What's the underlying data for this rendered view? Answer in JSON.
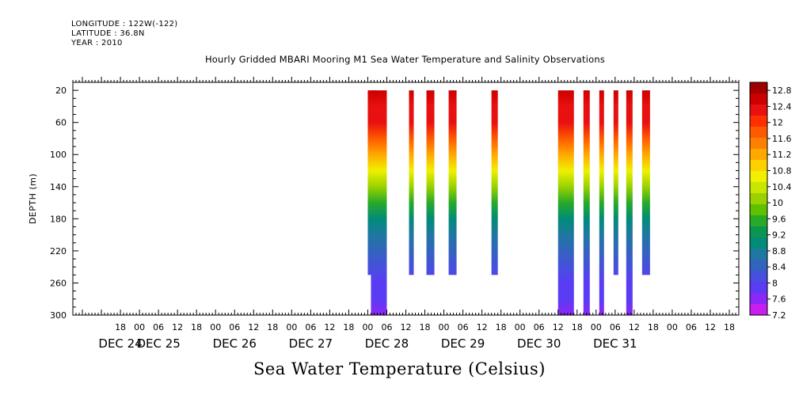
{
  "header": {
    "lines": [
      "LONGITUDE : 122W(-122)",
      "LATITUDE : 36.8N",
      "YEAR : 2010"
    ]
  },
  "chart_data": {
    "type": "heatmap",
    "title": "Hourly Gridded MBARI Mooring M1 Sea Water Temperature and Salinity Observations",
    "xlabel": "Sea Water Temperature (Celsius)",
    "ylabel": "DEPTH (m)",
    "x_unit": "hours since Dec 24 00:00, 2010",
    "xlim": [
      -21,
      189
    ],
    "ylim": [
      300,
      10
    ],
    "y_reversed": true,
    "y_ticks": [
      20,
      60,
      100,
      140,
      180,
      220,
      260,
      300
    ],
    "x_hour_ticks": [
      {
        "h": -6,
        "label": "18"
      },
      {
        "h": 0,
        "label": "00"
      },
      {
        "h": 6,
        "label": "06"
      },
      {
        "h": 12,
        "label": "12"
      },
      {
        "h": 18,
        "label": "18"
      },
      {
        "h": 24,
        "label": "00"
      },
      {
        "h": 30,
        "label": "06"
      },
      {
        "h": 36,
        "label": "12"
      },
      {
        "h": 42,
        "label": "18"
      },
      {
        "h": 48,
        "label": "00"
      },
      {
        "h": 54,
        "label": "06"
      },
      {
        "h": 60,
        "label": "12"
      },
      {
        "h": 66,
        "label": "18"
      },
      {
        "h": 72,
        "label": "00"
      },
      {
        "h": 78,
        "label": "06"
      },
      {
        "h": 84,
        "label": "12"
      },
      {
        "h": 90,
        "label": "18"
      },
      {
        "h": 96,
        "label": "00"
      },
      {
        "h": 102,
        "label": "06"
      },
      {
        "h": 108,
        "label": "12"
      },
      {
        "h": 114,
        "label": "18"
      },
      {
        "h": 120,
        "label": "00"
      },
      {
        "h": 126,
        "label": "06"
      },
      {
        "h": 132,
        "label": "12"
      },
      {
        "h": 138,
        "label": "18"
      },
      {
        "h": 144,
        "label": "00"
      },
      {
        "h": 150,
        "label": "06"
      },
      {
        "h": 156,
        "label": "12"
      },
      {
        "h": 162,
        "label": "18"
      },
      {
        "h": 168,
        "label": "00"
      },
      {
        "h": 174,
        "label": "06"
      },
      {
        "h": 180,
        "label": "12"
      },
      {
        "h": 186,
        "label": "18"
      }
    ],
    "x_day_labels": [
      {
        "h": -6,
        "label": "DEC 24"
      },
      {
        "h": 6,
        "label": "DEC 25"
      },
      {
        "h": 30,
        "label": "DEC 26"
      },
      {
        "h": 54,
        "label": "DEC 27"
      },
      {
        "h": 78,
        "label": "DEC 28"
      },
      {
        "h": 102,
        "label": "DEC 29"
      },
      {
        "h": 126,
        "label": "DEC 30"
      },
      {
        "h": 150,
        "label": "DEC 31"
      }
    ],
    "colorbar": {
      "labels": [
        12.8,
        12.4,
        12,
        11.6,
        11.2,
        10.8,
        10.4,
        10,
        9.6,
        9.2,
        8.8,
        8.4,
        8,
        7.6,
        7.2
      ],
      "colors": [
        "#a00000",
        "#cc0000",
        "#e81010",
        "#ff3000",
        "#ff5a00",
        "#ff8000",
        "#ffa800",
        "#ffd000",
        "#f0f000",
        "#c8e600",
        "#9ad200",
        "#5fc000",
        "#28aa28",
        "#0a9650",
        "#008c78",
        "#1e78a0",
        "#3264be",
        "#4650dc",
        "#5a3cf5",
        "#8c28f5",
        "#c81ef0"
      ],
      "vmin": 7.2,
      "vmax": 13.0
    },
    "depth_profiles": [
      {
        "depth": 20,
        "temp": 12.5
      },
      {
        "depth": 40,
        "temp": 12.35
      },
      {
        "depth": 60,
        "temp": 12.2
      },
      {
        "depth": 80,
        "temp": 11.7
      },
      {
        "depth": 100,
        "temp": 11.1
      },
      {
        "depth": 120,
        "temp": 10.55
      },
      {
        "depth": 140,
        "temp": 10.0
      },
      {
        "depth": 160,
        "temp": 9.5
      },
      {
        "depth": 180,
        "temp": 9.1
      },
      {
        "depth": 200,
        "temp": 8.75
      },
      {
        "depth": 220,
        "temp": 8.45
      },
      {
        "depth": 240,
        "temp": 8.25
      },
      {
        "depth": 260,
        "temp": 8.0
      },
      {
        "depth": 280,
        "temp": 7.85
      },
      {
        "depth": 300,
        "temp": 7.7
      }
    ],
    "data_blocks": [
      {
        "start": 72,
        "end": 75,
        "depth_min": 20,
        "depth_max": 250
      },
      {
        "start": 73,
        "end": 78,
        "depth_min": 20,
        "depth_max": 300
      },
      {
        "start": 85,
        "end": 86.5,
        "depth_min": 20,
        "depth_max": 250
      },
      {
        "start": 90.5,
        "end": 93,
        "depth_min": 20,
        "depth_max": 250
      },
      {
        "start": 97.5,
        "end": 100,
        "depth_min": 20,
        "depth_max": 250
      },
      {
        "start": 111,
        "end": 113,
        "depth_min": 20,
        "depth_max": 250
      },
      {
        "start": 132,
        "end": 137,
        "depth_min": 20,
        "depth_max": 300
      },
      {
        "start": 140,
        "end": 142,
        "depth_min": 20,
        "depth_max": 300
      },
      {
        "start": 145,
        "end": 146.5,
        "depth_min": 20,
        "depth_max": 300
      },
      {
        "start": 149.5,
        "end": 151,
        "depth_min": 20,
        "depth_max": 250
      },
      {
        "start": 153.5,
        "end": 155.5,
        "depth_min": 20,
        "depth_max": 300
      },
      {
        "start": 158.5,
        "end": 161,
        "depth_min": 20,
        "depth_max": 250
      }
    ]
  }
}
